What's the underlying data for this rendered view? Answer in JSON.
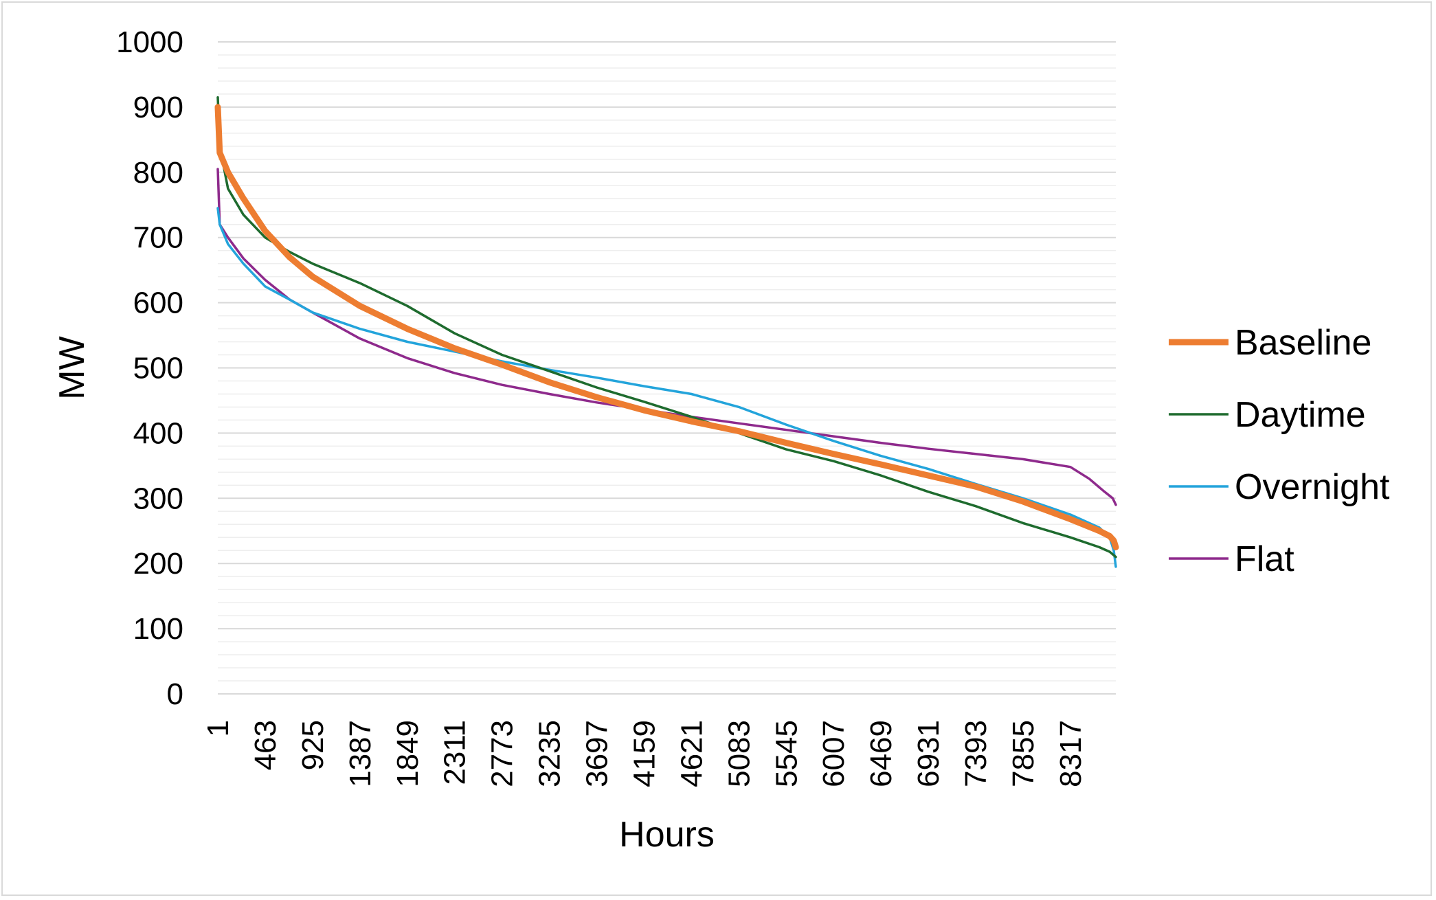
{
  "chart_data": {
    "type": "line",
    "title": "",
    "xlabel": "Hours",
    "ylabel": "MW",
    "xlim": [
      1,
      8760
    ],
    "ylim": [
      0,
      1000
    ],
    "x_tick_labels": [
      "1",
      "463",
      "925",
      "1387",
      "1849",
      "2311",
      "2773",
      "3235",
      "3697",
      "4159",
      "4621",
      "5083",
      "5545",
      "6007",
      "6469",
      "6931",
      "7393",
      "7855",
      "8317"
    ],
    "y_tick_labels": [
      "0",
      "100",
      "200",
      "300",
      "400",
      "500",
      "600",
      "700",
      "800",
      "900",
      "1000"
    ],
    "grid": "horizontal major and minor",
    "legend_position": "right",
    "series": [
      {
        "name": "Baseline",
        "color": "#ed7d31",
        "emphasis": "thick",
        "points": [
          [
            1,
            900
          ],
          [
            20,
            830
          ],
          [
            100,
            800
          ],
          [
            250,
            760
          ],
          [
            463,
            710
          ],
          [
            700,
            670
          ],
          [
            925,
            640
          ],
          [
            1387,
            595
          ],
          [
            1849,
            560
          ],
          [
            2311,
            530
          ],
          [
            2773,
            505
          ],
          [
            3235,
            478
          ],
          [
            3697,
            455
          ],
          [
            4159,
            435
          ],
          [
            4621,
            418
          ],
          [
            5083,
            403
          ],
          [
            5545,
            385
          ],
          [
            6007,
            368
          ],
          [
            6469,
            352
          ],
          [
            6931,
            335
          ],
          [
            7393,
            318
          ],
          [
            7855,
            295
          ],
          [
            8317,
            268
          ],
          [
            8600,
            250
          ],
          [
            8700,
            242
          ],
          [
            8740,
            235
          ],
          [
            8760,
            225
          ]
        ]
      },
      {
        "name": "Daytime",
        "color": "#1e6b2e",
        "points": [
          [
            1,
            915
          ],
          [
            20,
            840
          ],
          [
            100,
            775
          ],
          [
            250,
            735
          ],
          [
            463,
            700
          ],
          [
            700,
            678
          ],
          [
            925,
            660
          ],
          [
            1387,
            630
          ],
          [
            1849,
            595
          ],
          [
            2311,
            553
          ],
          [
            2773,
            520
          ],
          [
            3235,
            495
          ],
          [
            3697,
            470
          ],
          [
            4159,
            448
          ],
          [
            4621,
            425
          ],
          [
            5083,
            400
          ],
          [
            5545,
            375
          ],
          [
            6007,
            357
          ],
          [
            6469,
            335
          ],
          [
            6931,
            310
          ],
          [
            7393,
            288
          ],
          [
            7855,
            262
          ],
          [
            8317,
            240
          ],
          [
            8600,
            225
          ],
          [
            8700,
            218
          ],
          [
            8760,
            210
          ]
        ]
      },
      {
        "name": "Overnight",
        "color": "#23a4db",
        "points": [
          [
            1,
            745
          ],
          [
            20,
            720
          ],
          [
            100,
            690
          ],
          [
            250,
            660
          ],
          [
            463,
            625
          ],
          [
            700,
            605
          ],
          [
            925,
            585
          ],
          [
            1387,
            560
          ],
          [
            1849,
            540
          ],
          [
            2311,
            525
          ],
          [
            2773,
            510
          ],
          [
            3235,
            497
          ],
          [
            3697,
            485
          ],
          [
            4159,
            472
          ],
          [
            4621,
            460
          ],
          [
            5083,
            440
          ],
          [
            5545,
            413
          ],
          [
            6007,
            388
          ],
          [
            6469,
            365
          ],
          [
            6931,
            345
          ],
          [
            7393,
            322
          ],
          [
            7855,
            300
          ],
          [
            8317,
            275
          ],
          [
            8600,
            255
          ],
          [
            8700,
            240
          ],
          [
            8740,
            220
          ],
          [
            8760,
            195
          ]
        ]
      },
      {
        "name": "Flat",
        "color": "#8e2a8c",
        "points": [
          [
            1,
            805
          ],
          [
            20,
            720
          ],
          [
            100,
            700
          ],
          [
            250,
            668
          ],
          [
            463,
            635
          ],
          [
            700,
            605
          ],
          [
            925,
            585
          ],
          [
            1387,
            545
          ],
          [
            1849,
            515
          ],
          [
            2311,
            492
          ],
          [
            2773,
            474
          ],
          [
            3235,
            460
          ],
          [
            3697,
            447
          ],
          [
            4159,
            436
          ],
          [
            4621,
            425
          ],
          [
            5083,
            415
          ],
          [
            5545,
            405
          ],
          [
            6007,
            395
          ],
          [
            6469,
            385
          ],
          [
            6931,
            376
          ],
          [
            7393,
            368
          ],
          [
            7855,
            360
          ],
          [
            8317,
            348
          ],
          [
            8500,
            330
          ],
          [
            8650,
            310
          ],
          [
            8730,
            300
          ],
          [
            8760,
            290
          ]
        ]
      }
    ]
  }
}
